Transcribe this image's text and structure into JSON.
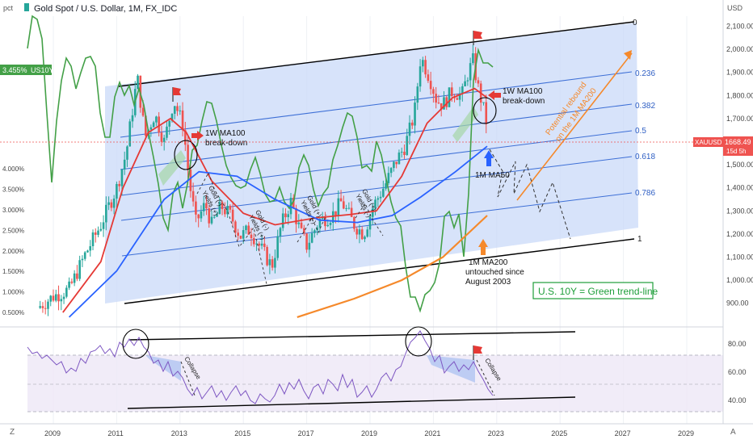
{
  "header": {
    "title": "Gold Spot / U.S. Dollar, 1M, FX_IDC",
    "left_unit": "pct",
    "right_unit": "USD"
  },
  "badges": {
    "us10y_value": "3.455%",
    "us10y_symbol": "US10Y",
    "xauusd_symbol": "XAUUSD",
    "xauusd_price": "1668.49",
    "xauusd_countdown": "15d 5h"
  },
  "colors": {
    "background": "#ffffff",
    "channel_fill": "#c9daf8",
    "channel_lines": "#000000",
    "fib_lines": "#3d6fd6",
    "candle_up": "#26a69a",
    "candle_down": "#ef5350",
    "ma50": "#2962ff",
    "ma100": "#e53935",
    "ma200": "#f5892b",
    "us10y": "#43a047",
    "rsi": "#7e57c2",
    "projection_orange": "#f5892b",
    "annotation_green": "#1e9e3a",
    "flag": "#e53935"
  },
  "annotations": {
    "fib_0": "0",
    "fib_0236": "0.236",
    "fib_0382": "0.382",
    "fib_05": "0.5",
    "fib_0618": "0.618",
    "fib_0786": "0.786",
    "fib_1": "1",
    "ma100_left_1": "1W MA100",
    "ma100_left_2": "break-down",
    "ma100_right_1": "1W MA100",
    "ma100_right_2": "break-down",
    "ma50_label": "1M MA50",
    "ma200_1": "1M MA200",
    "ma200_2": "untouched since",
    "ma200_3": "August 2003",
    "rebound_1": "Potential rebound",
    "rebound_2": "on the 1M MA200",
    "us10y_legend": "U.S. 10Y = Green trend-line",
    "gold_yields": "Gold (-)",
    "yields_up": "Yields (+)",
    "gold_up": "Gold (+)",
    "yields_down": "Yields (-)",
    "collapse": "Collapse"
  },
  "chart_data": {
    "type": "candlestick",
    "interval": "1M",
    "symbol": "XAUUSD",
    "x_ticks": [
      "2009",
      "2011",
      "2013",
      "2015",
      "2017",
      "2019",
      "2021",
      "2023",
      "2025",
      "2027",
      "2029"
    ],
    "y_right_ticks": [
      "2,100.00",
      "2,000.00",
      "1,900.00",
      "1,800.00",
      "1,700.00",
      "1,600.00",
      "1,500.00",
      "1,400.00",
      "1,300.00",
      "1,200.00",
      "1,100.00",
      "1,000.00",
      "900.00"
    ],
    "y_left_ticks": [
      "4.000%",
      "3.500%",
      "3.000%",
      "2.500%",
      "2.000%",
      "1.500%",
      "1.000%",
      "0.500%"
    ],
    "rsi_ticks": [
      "80.00",
      "60.00",
      "40.00"
    ],
    "last_price": 1668.49,
    "us10y_last": 3.455,
    "price_path": [
      [
        "2008.5",
        880
      ],
      [
        "2009.0",
        930
      ],
      [
        "2009.5",
        960
      ],
      [
        "2010.0",
        1110
      ],
      [
        "2010.5",
        1240
      ],
      [
        "2011.0",
        1400
      ],
      [
        "2011.3",
        1550
      ],
      [
        "2011.65",
        1880
      ],
      [
        "2011.9",
        1620
      ],
      [
        "2012.2",
        1720
      ],
      [
        "2012.5",
        1600
      ],
      [
        "2012.8",
        1780
      ],
      [
        "2013.1",
        1670
      ],
      [
        "2013.3",
        1420
      ],
      [
        "2013.5",
        1250
      ],
      [
        "2013.8",
        1330
      ],
      [
        "2014.0",
        1240
      ],
      [
        "2014.3",
        1320
      ],
      [
        "2014.6",
        1280
      ],
      [
        "2014.9",
        1190
      ],
      [
        "2015.2",
        1220
      ],
      [
        "2015.5",
        1150
      ],
      [
        "2015.9",
        1060
      ],
      [
        "2016.2",
        1240
      ],
      [
        "2016.5",
        1340
      ],
      [
        "2016.8",
        1210
      ],
      [
        "2017.0",
        1150
      ],
      [
        "2017.4",
        1260
      ],
      [
        "2017.8",
        1280
      ],
      [
        "2018.1",
        1340
      ],
      [
        "2018.5",
        1240
      ],
      [
        "2018.8",
        1200
      ],
      [
        "2019.1",
        1320
      ],
      [
        "2019.5",
        1420
      ],
      [
        "2019.8",
        1510
      ],
      [
        "2020.1",
        1580
      ],
      [
        "2020.4",
        1720
      ],
      [
        "2020.6",
        1970
      ],
      [
        "2020.9",
        1870
      ],
      [
        "2021.1",
        1780
      ],
      [
        "2021.3",
        1760
      ],
      [
        "2021.6",
        1820
      ],
      [
        "2021.9",
        1800
      ],
      [
        "2022.1",
        1900
      ],
      [
        "2022.25",
        1950
      ],
      [
        "2022.4",
        1840
      ],
      [
        "2022.55",
        1760
      ],
      [
        "2022.7",
        1668.49
      ]
    ],
    "series": [
      {
        "name": "1M MA50",
        "values": [
          [
            "2009.5",
            840
          ],
          [
            "2011.0",
            1040
          ],
          [
            "2012.5",
            1350
          ],
          [
            "2013.6",
            1470
          ],
          [
            "2014.8",
            1450
          ],
          [
            "2016.0",
            1350
          ],
          [
            "2017.4",
            1260
          ],
          [
            "2018.6",
            1250
          ],
          [
            "2019.7",
            1280
          ],
          [
            "2020.6",
            1360
          ],
          [
            "2021.7",
            1470
          ],
          [
            "2022.7",
            1580
          ]
        ]
      },
      {
        "name": "1W MA100",
        "values": [
          [
            "2009.3",
            860
          ],
          [
            "2010.5",
            1080
          ],
          [
            "2011.2",
            1400
          ],
          [
            "2012.0",
            1640
          ],
          [
            "2012.7",
            1700
          ],
          [
            "2013.2",
            1640
          ],
          [
            "2014.0",
            1430
          ],
          [
            "2015.0",
            1290
          ],
          [
            "2016.0",
            1240
          ],
          [
            "2017.3",
            1270
          ],
          [
            "2018.4",
            1285
          ],
          [
            "2019.2",
            1300
          ],
          [
            "2020.0",
            1450
          ],
          [
            "2020.8",
            1680
          ],
          [
            "2021.6",
            1790
          ],
          [
            "2022.3",
            1830
          ],
          [
            "2022.7",
            1790
          ]
        ]
      },
      {
        "name": "1M MA200",
        "values": [
          [
            "2016.7",
            840
          ],
          [
            "2018.5",
            920
          ],
          [
            "2020.0",
            1000
          ],
          [
            "2021.3",
            1100
          ],
          [
            "2022.7",
            1280
          ]
        ]
      }
    ]
  }
}
